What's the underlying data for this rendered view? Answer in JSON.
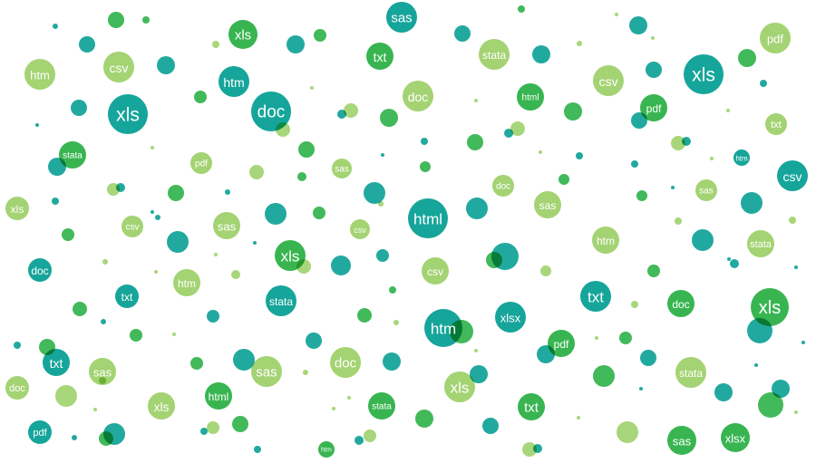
{
  "colors": {
    "teal": "#0aa095",
    "green": "#2db148",
    "lime": "#9fd16c"
  },
  "bubbles": [
    {
      "label": "sas",
      "color": "teal"
    },
    {
      "label": "xls",
      "color": "green"
    },
    {
      "label": "htm",
      "color": "lime"
    },
    {
      "label": "csv",
      "color": "lime"
    },
    {
      "label": "txt",
      "color": "green"
    },
    {
      "label": "stata",
      "color": "lime"
    },
    {
      "label": "pdf",
      "color": "lime"
    },
    {
      "label": "xls",
      "color": "teal"
    },
    {
      "label": "htm",
      "color": "teal"
    },
    {
      "label": "xls",
      "color": "teal"
    },
    {
      "label": "doc",
      "color": "teal"
    },
    {
      "label": "doc",
      "color": "lime"
    },
    {
      "label": "html",
      "color": "green"
    },
    {
      "label": "csv",
      "color": "lime"
    },
    {
      "label": "pdf",
      "color": "green"
    },
    {
      "label": "txt",
      "color": "lime"
    },
    {
      "label": "stata",
      "color": "green"
    },
    {
      "label": "pdf",
      "color": "lime"
    },
    {
      "label": "sas",
      "color": "lime"
    },
    {
      "label": "doc",
      "color": "lime"
    },
    {
      "label": "htm",
      "color": "teal"
    },
    {
      "label": "xls",
      "color": "lime"
    },
    {
      "label": "csv",
      "color": "lime"
    },
    {
      "label": "sas",
      "color": "lime"
    },
    {
      "label": "csv",
      "color": "lime"
    },
    {
      "label": "html",
      "color": "teal"
    },
    {
      "label": "sas",
      "color": "lime"
    },
    {
      "label": "sas",
      "color": "lime"
    },
    {
      "label": "csv",
      "color": "teal"
    },
    {
      "label": "xls",
      "color": "green"
    },
    {
      "label": "htm",
      "color": "lime"
    },
    {
      "label": "stata",
      "color": "lime"
    },
    {
      "label": "doc",
      "color": "teal"
    },
    {
      "label": "csv",
      "color": "lime"
    },
    {
      "label": "htm",
      "color": "lime"
    },
    {
      "label": "txt",
      "color": "teal"
    },
    {
      "label": "stata",
      "color": "teal"
    },
    {
      "label": "txt",
      "color": "teal"
    },
    {
      "label": "doc",
      "color": "green"
    },
    {
      "label": "xls",
      "color": "green"
    },
    {
      "label": "xlsx",
      "color": "teal"
    },
    {
      "label": "htm",
      "color": "teal"
    },
    {
      "label": "pdf",
      "color": "green"
    },
    {
      "label": "txt",
      "color": "teal"
    },
    {
      "label": "sas",
      "color": "lime"
    },
    {
      "label": "sas",
      "color": "lime"
    },
    {
      "label": "doc",
      "color": "lime"
    },
    {
      "label": "stata",
      "color": "lime"
    },
    {
      "label": "doc",
      "color": "lime"
    },
    {
      "label": "xls",
      "color": "lime"
    },
    {
      "label": "html",
      "color": "green"
    },
    {
      "label": "xls",
      "color": "lime"
    },
    {
      "label": "stata",
      "color": "green"
    },
    {
      "label": "txt",
      "color": "green"
    },
    {
      "label": "pdf",
      "color": "teal"
    },
    {
      "label": "htm",
      "color": "green"
    },
    {
      "label": "sas",
      "color": "green"
    },
    {
      "label": "xlsx",
      "color": "green"
    }
  ]
}
